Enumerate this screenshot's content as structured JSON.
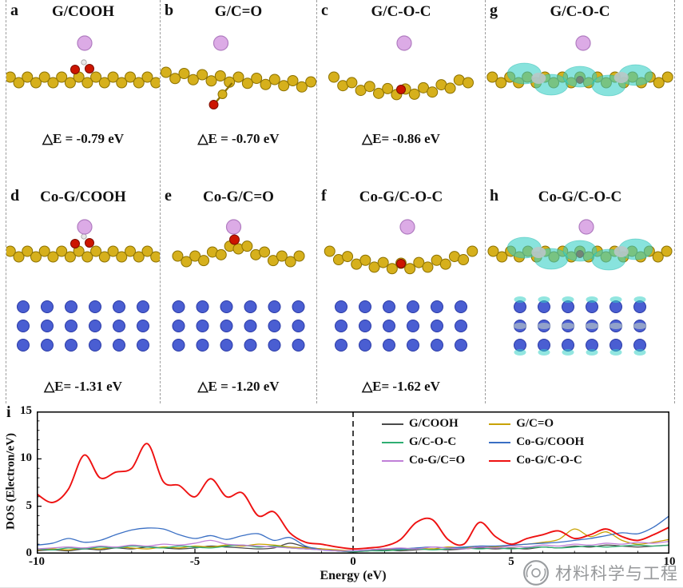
{
  "figure": {
    "panels": [
      {
        "id": "a",
        "letter": "a",
        "title": "G/COOH",
        "deltaE": "△E = -0.79 eV"
      },
      {
        "id": "b",
        "letter": "b",
        "title": "G/C=O",
        "deltaE": "△E = -0.70 eV"
      },
      {
        "id": "c",
        "letter": "c",
        "title": "G/C-O-C",
        "deltaE": "△E= -0.86 eV"
      },
      {
        "id": "g",
        "letter": "g",
        "title": "G/C-O-C",
        "deltaE": null
      },
      {
        "id": "d",
        "letter": "d",
        "title": "Co-G/COOH",
        "deltaE": "△E= -1.31 eV"
      },
      {
        "id": "e",
        "letter": "e",
        "title": "Co-G/C=O",
        "deltaE": "△E = -1.20 eV"
      },
      {
        "id": "f",
        "letter": "f",
        "title": "Co-G/C-O-C",
        "deltaE": "△E= -1.62 eV"
      },
      {
        "id": "h",
        "letter": "h",
        "title": "Co-G/C-O-C",
        "deltaE": null
      }
    ],
    "panel_i_letter": "i"
  },
  "chart_data": {
    "type": "line",
    "title": "",
    "xlabel": "Energy (eV)",
    "ylabel": "DOS (Electron/eV)",
    "xlim": [
      -10,
      10
    ],
    "ylim": [
      0,
      15
    ],
    "xticks": [
      -10,
      -5,
      0,
      5,
      10
    ],
    "yticks": [
      0,
      5,
      10,
      15
    ],
    "fermi_line_x": 0,
    "legend_position": "top-center-right",
    "grid": false,
    "x_start": -10,
    "x_step": 0.5,
    "series": [
      {
        "name": "G/COOH",
        "color": "#4a4a4a",
        "values": [
          0.3,
          0.4,
          0.3,
          0.5,
          0.4,
          0.6,
          0.5,
          0.7,
          0.6,
          0.5,
          0.6,
          0.8,
          0.7,
          0.6,
          0.5,
          0.6,
          1.1,
          0.7,
          0.5,
          0.3,
          0.2,
          0.3,
          0.4,
          0.3,
          0.4,
          0.5,
          0.4,
          0.5,
          0.6,
          0.5,
          0.6,
          0.5,
          0.7,
          0.6,
          0.8,
          0.7,
          0.9,
          0.8,
          0.7,
          0.8,
          0.9
        ]
      },
      {
        "name": "G/C=O",
        "color": "#c8a200",
        "values": [
          0.4,
          0.5,
          0.4,
          0.6,
          0.5,
          0.7,
          0.6,
          0.5,
          0.7,
          0.6,
          0.8,
          0.7,
          0.9,
          0.8,
          1.0,
          0.9,
          0.7,
          0.6,
          0.5,
          0.4,
          0.3,
          0.4,
          0.5,
          0.4,
          0.6,
          0.5,
          0.7,
          0.6,
          0.8,
          0.7,
          0.9,
          1.0,
          1.2,
          1.5,
          2.6,
          1.8,
          2.3,
          1.4,
          1.0,
          1.2,
          1.5
        ]
      },
      {
        "name": "G/C-O-C",
        "color": "#2fae72",
        "values": [
          0.5,
          0.4,
          0.6,
          0.5,
          0.7,
          0.6,
          0.8,
          0.7,
          0.6,
          0.8,
          0.7,
          0.6,
          0.8,
          0.9,
          0.7,
          0.8,
          0.6,
          0.5,
          0.4,
          0.3,
          0.2,
          0.3,
          0.3,
          0.4,
          0.5,
          0.4,
          0.5,
          0.6,
          0.5,
          0.6,
          0.5,
          0.6,
          0.7,
          0.6,
          0.7,
          0.8,
          0.7,
          0.8,
          0.9,
          0.8,
          0.9
        ]
      },
      {
        "name": "Co-G/COOH",
        "color": "#3a6fc4",
        "values": [
          0.9,
          1.1,
          1.6,
          1.2,
          1.4,
          2.0,
          2.5,
          2.7,
          2.6,
          2.0,
          1.6,
          1.9,
          1.5,
          1.9,
          2.1,
          1.4,
          1.7,
          0.8,
          0.4,
          0.3,
          0.3,
          0.4,
          0.5,
          0.5,
          0.6,
          0.7,
          0.6,
          0.7,
          0.8,
          0.8,
          0.9,
          1.0,
          1.1,
          1.2,
          1.4,
          1.6,
          1.9,
          2.2,
          2.1,
          2.8,
          4.0
        ]
      },
      {
        "name": "Co-G/C=O",
        "color": "#c07fd8",
        "values": [
          0.5,
          0.6,
          0.7,
          0.6,
          0.8,
          0.7,
          0.9,
          0.8,
          1.0,
          0.9,
          1.1,
          1.4,
          1.0,
          0.9,
          0.8,
          0.7,
          0.6,
          0.5,
          0.4,
          0.3,
          0.3,
          0.4,
          0.5,
          0.6,
          0.5,
          0.7,
          0.6,
          0.5,
          0.7,
          0.6,
          0.8,
          0.7,
          0.9,
          0.8,
          1.0,
          0.9,
          1.1,
          1.0,
          1.2,
          1.1,
          1.3
        ]
      },
      {
        "name": "Co-G/C-O-C",
        "color": "#ee1111",
        "values": [
          6.3,
          5.4,
          6.8,
          10.4,
          8.0,
          8.6,
          9.0,
          11.6,
          7.6,
          7.2,
          6.0,
          7.9,
          6.0,
          6.4,
          4.0,
          4.4,
          2.2,
          1.2,
          1.0,
          0.7,
          0.5,
          0.6,
          0.8,
          1.5,
          3.3,
          3.6,
          1.5,
          1.0,
          3.3,
          1.8,
          1.0,
          1.6,
          2.0,
          2.4,
          1.6,
          2.0,
          2.6,
          1.8,
          1.4,
          2.0,
          2.8
        ]
      }
    ]
  },
  "watermark": {
    "text": "材料科学与工程"
  },
  "style_colors": {
    "carbon": "#d6b01c",
    "oxygen": "#cc1500",
    "ion": "#dcabe6",
    "cobalt": "#4a5ed2",
    "isosurface": "#39d1c6",
    "hydrogen": "#e9e9e9"
  }
}
